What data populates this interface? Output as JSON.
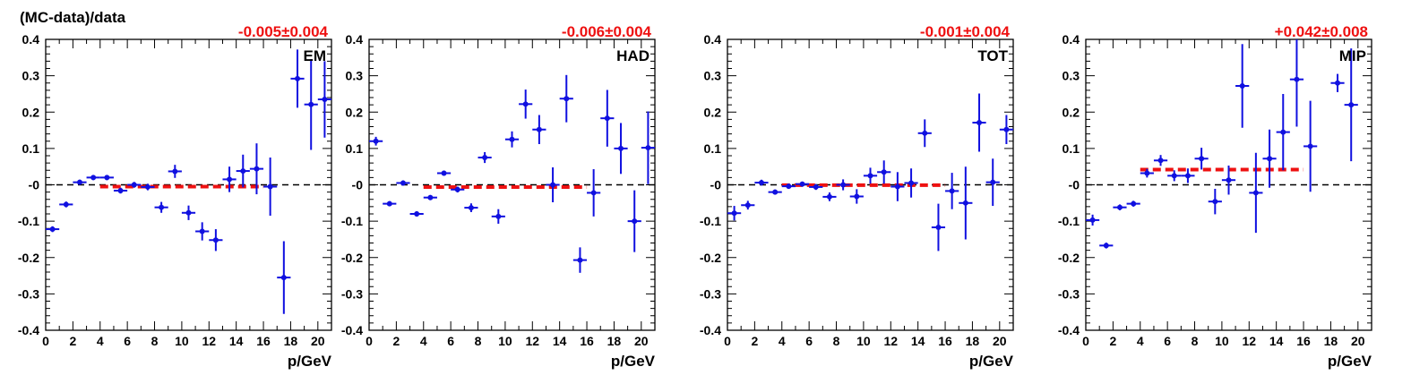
{
  "figure": {
    "ylabel": "(MC-data)/data",
    "colors": {
      "points": "#1010e0",
      "fit": "#ee1111",
      "fit_text": "#ee1111",
      "zero_line": "#000000",
      "axis": "#000000"
    }
  },
  "chart_data": [
    {
      "type": "scatter",
      "panel_label": "EM",
      "fit_result": "-0.005±0.004",
      "xlabel": "p/GeV",
      "ylabel": "(MC-data)/data",
      "xlim": [
        0,
        21
      ],
      "ylim": [
        -0.4,
        0.4
      ],
      "xticks": [
        0,
        2,
        4,
        6,
        8,
        10,
        12,
        14,
        16,
        18,
        20
      ],
      "yticks": [
        -0.4,
        -0.3,
        -0.2,
        -0.1,
        0,
        0.1,
        0.2,
        0.3,
        0.4
      ],
      "ytick_labels": [
        "-0.4",
        "-0.3",
        "-0.2",
        "-0.1",
        "-0",
        "0.1",
        "0.2",
        "0.3",
        "0.4"
      ],
      "fit_line": {
        "x": [
          4,
          16
        ],
        "y": -0.005
      },
      "zero_line": 0,
      "x": [
        0.5,
        1.5,
        2.5,
        3.5,
        4.5,
        5.5,
        6.5,
        7.5,
        8.5,
        9.5,
        10.5,
        11.5,
        12.5,
        13.5,
        14.5,
        15.5,
        16.5,
        17.5,
        18.5,
        19.5,
        20.5
      ],
      "y": [
        -0.122,
        -0.054,
        0.007,
        0.02,
        0.02,
        -0.016,
        0.0,
        -0.006,
        -0.062,
        0.037,
        -0.077,
        -0.128,
        -0.152,
        0.015,
        0.038,
        0.044,
        -0.005,
        -0.255,
        0.292,
        0.221,
        0.235
      ],
      "yerr": [
        0.008,
        0.008,
        0.007,
        0.007,
        0.007,
        0.008,
        0.008,
        0.009,
        0.015,
        0.018,
        0.02,
        0.025,
        0.03,
        0.035,
        0.045,
        0.07,
        0.08,
        0.1,
        0.08,
        0.125,
        0.105
      ]
    },
    {
      "type": "scatter",
      "panel_label": "HAD",
      "fit_result": "-0.006±0.004",
      "xlabel": "p/GeV",
      "ylabel": "",
      "xlim": [
        0,
        21
      ],
      "ylim": [
        -0.4,
        0.4
      ],
      "xticks": [
        0,
        2,
        4,
        6,
        8,
        10,
        12,
        14,
        16,
        18,
        20
      ],
      "yticks": [
        -0.4,
        -0.3,
        -0.2,
        -0.1,
        0,
        0.1,
        0.2,
        0.3,
        0.4
      ],
      "ytick_labels": [
        "-0.4",
        "-0.3",
        "-0.2",
        "-0.1",
        "-0",
        "0.1",
        "0.2",
        "0.3",
        "0.4"
      ],
      "fit_line": {
        "x": [
          4,
          16
        ],
        "y": -0.006
      },
      "zero_line": 0,
      "x": [
        0.5,
        1.5,
        2.5,
        3.5,
        4.5,
        5.5,
        6.5,
        7.5,
        8.5,
        9.5,
        10.5,
        11.5,
        12.5,
        13.5,
        14.5,
        15.5,
        16.5,
        17.5,
        18.5,
        19.5,
        20.5
      ],
      "y": [
        0.12,
        -0.052,
        0.005,
        -0.08,
        -0.035,
        0.032,
        -0.013,
        -0.063,
        0.075,
        -0.087,
        0.125,
        0.222,
        0.152,
        0.0,
        0.237,
        -0.207,
        -0.022,
        0.183,
        0.1,
        -0.1,
        0.102
      ],
      "yerr": [
        0.012,
        0.007,
        0.007,
        0.007,
        0.007,
        0.007,
        0.008,
        0.012,
        0.015,
        0.02,
        0.022,
        0.04,
        0.04,
        0.048,
        0.065,
        0.035,
        0.065,
        0.078,
        0.07,
        0.085,
        0.1
      ]
    },
    {
      "type": "scatter",
      "panel_label": "TOT",
      "fit_result": "-0.001±0.004",
      "xlabel": "p/GeV",
      "ylabel": "",
      "xlim": [
        0,
        21
      ],
      "ylim": [
        -0.4,
        0.4
      ],
      "xticks": [
        0,
        2,
        4,
        6,
        8,
        10,
        12,
        14,
        16,
        18,
        20
      ],
      "yticks": [
        -0.4,
        -0.3,
        -0.2,
        -0.1,
        0,
        0.1,
        0.2,
        0.3,
        0.4
      ],
      "ytick_labels": [
        "-0.4",
        "-0.3",
        "-0.2",
        "-0.1",
        "-0",
        "0.1",
        "0.2",
        "0.3",
        "0.4"
      ],
      "fit_line": {
        "x": [
          4,
          16
        ],
        "y": -0.001
      },
      "zero_line": 0,
      "x": [
        0.5,
        1.5,
        2.5,
        3.5,
        4.5,
        5.5,
        6.5,
        7.5,
        8.5,
        9.5,
        10.5,
        11.5,
        12.5,
        13.5,
        14.5,
        15.5,
        16.5,
        17.5,
        18.5,
        19.5,
        20.5
      ],
      "y": [
        -0.078,
        -0.056,
        0.006,
        -0.02,
        -0.004,
        0.002,
        -0.006,
        -0.033,
        0.0,
        -0.032,
        0.025,
        0.035,
        -0.005,
        0.005,
        0.142,
        -0.117,
        -0.017,
        -0.05,
        0.171,
        0.007,
        0.152
      ],
      "yerr": [
        0.02,
        0.012,
        0.008,
        0.007,
        0.007,
        0.007,
        0.008,
        0.012,
        0.015,
        0.02,
        0.022,
        0.032,
        0.04,
        0.04,
        0.038,
        0.065,
        0.05,
        0.1,
        0.08,
        0.065,
        0.04
      ]
    },
    {
      "type": "scatter",
      "panel_label": "MIP",
      "fit_result": "+0.042±0.008",
      "xlabel": "p/GeV",
      "ylabel": "",
      "xlim": [
        0,
        21
      ],
      "ylim": [
        -0.4,
        0.4
      ],
      "xticks": [
        0,
        2,
        4,
        6,
        8,
        10,
        12,
        14,
        16,
        18,
        20
      ],
      "yticks": [
        -0.4,
        -0.3,
        -0.2,
        -0.1,
        0,
        0.1,
        0.2,
        0.3,
        0.4
      ],
      "ytick_labels": [
        "-0.4",
        "-0.3",
        "-0.2",
        "-0.1",
        "-0",
        "0.1",
        "0.2",
        "0.3",
        "0.4"
      ],
      "fit_line": {
        "x": [
          4,
          16
        ],
        "y": 0.042
      },
      "zero_line": 0,
      "x": [
        0.5,
        1.5,
        2.5,
        3.5,
        4.5,
        5.5,
        6.5,
        7.5,
        8.5,
        9.5,
        10.5,
        11.5,
        12.5,
        13.5,
        14.5,
        15.5,
        16.5,
        18.5,
        19.5
      ],
      "y": [
        -0.097,
        -0.167,
        -0.062,
        -0.052,
        0.032,
        0.067,
        0.025,
        0.025,
        0.072,
        -0.046,
        0.013,
        0.272,
        -0.022,
        0.072,
        0.145,
        0.29,
        0.106,
        0.28,
        0.22
      ],
      "yerr": [
        0.015,
        0.008,
        0.008,
        0.008,
        0.012,
        0.015,
        0.015,
        0.02,
        0.03,
        0.035,
        0.04,
        0.115,
        0.11,
        0.08,
        0.105,
        0.13,
        0.125,
        0.025,
        0.155
      ]
    }
  ]
}
